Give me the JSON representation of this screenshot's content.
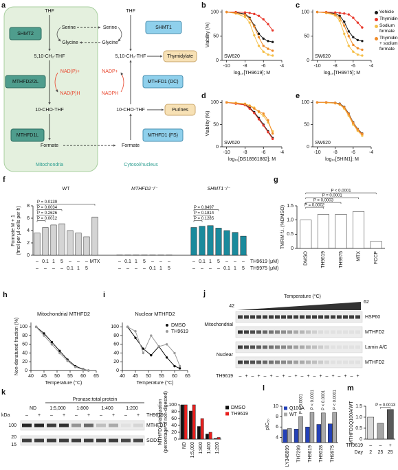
{
  "diagram": {
    "panel": "a",
    "mito": {
      "thf": "THF",
      "serine": "Serine",
      "glycine": "Glycine",
      "ch2thf": "5,10-CH₂-THF",
      "nadp_plus": "NAD(P)+",
      "nadph": "NAD(P)H",
      "chothf": "10-CHO-THF",
      "formate": "Formate",
      "shmt": "SHMT2",
      "mthfd": "MTHFD2/2L",
      "mthfd1l": "MTHFD1L",
      "label": "Mitochondria"
    },
    "cyto": {
      "thf": "THF",
      "serine": "Serine",
      "glycine": "Glycine",
      "ch2thf": "5,10-CH₂-THF",
      "nadp_plus": "NADP+",
      "nadph": "NADPH",
      "chothf": "10-CHO-THF",
      "formate": "Formate",
      "shmt": "SHMT1",
      "mthfd_dc": "MTHFD1 (DC)",
      "mthfd_fs": "MTHFD1 (FS)",
      "thymidylate": "Thymidylate",
      "purines": "Purines",
      "label": "Cytosol/nucleus"
    }
  },
  "chart_data": [
    {
      "type": "line",
      "panel": "b",
      "annotation": "SW620",
      "xlabel": "log₁₀[TH9619]; M",
      "ylabel": "Viability (%)",
      "x": [
        -10,
        -9,
        -8,
        -7.5,
        -7,
        -6.5,
        -6,
        -5.5,
        -5
      ],
      "xlim": [
        -10.5,
        -4
      ],
      "xticks": [
        -10,
        -8,
        -6,
        -4
      ],
      "ylim": [
        0,
        105
      ],
      "yticks": [
        0,
        50,
        100
      ],
      "series": [
        {
          "color": "#1a1a1a",
          "values": [
            100,
            99,
            96,
            88,
            72,
            55,
            45,
            40,
            38
          ]
        },
        {
          "color": "#e8382b",
          "values": [
            100,
            100,
            99,
            98,
            96,
            92,
            85,
            75,
            62
          ]
        },
        {
          "color": "#f5c04a",
          "values": [
            100,
            97,
            90,
            78,
            52,
            30,
            18,
            12,
            10
          ]
        },
        {
          "color": "#f08c2a",
          "values": [
            100,
            98,
            94,
            86,
            70,
            48,
            30,
            24,
            20
          ]
        }
      ]
    },
    {
      "type": "line",
      "panel": "c",
      "annotation": "SW620",
      "xlabel": "log₁₀[TH9975]; M",
      "x": [
        -10,
        -9,
        -8,
        -7.5,
        -7,
        -6.5,
        -6,
        -5.5,
        -5
      ],
      "xlim": [
        -10.5,
        -4
      ],
      "xticks": [
        -10,
        -8,
        -6,
        -4
      ],
      "ylim": [
        0,
        105
      ],
      "yticks": [
        0,
        50,
        100
      ],
      "legend": "right",
      "series": [
        {
          "name": "Vehicle",
          "color": "#1a1a1a",
          "values": [
            100,
            99,
            97,
            92,
            80,
            60,
            48,
            42,
            40
          ]
        },
        {
          "name": "Thymidine",
          "color": "#e8382b",
          "values": [
            100,
            100,
            99,
            98,
            97,
            95,
            88,
            78,
            68
          ]
        },
        {
          "name": "Sodium formate",
          "color": "#f5c04a",
          "values": [
            100,
            98,
            93,
            82,
            55,
            30,
            18,
            12,
            10
          ]
        },
        {
          "name": "Thymidine + sodium formate",
          "color": "#f08c2a",
          "values": [
            100,
            99,
            95,
            88,
            72,
            50,
            32,
            25,
            22
          ]
        }
      ]
    },
    {
      "type": "line",
      "panel": "d",
      "annotation": "SW620",
      "xlabel": "log₁₀[DS18561882]; M",
      "ylabel": "Viability (%)",
      "x": [
        -10,
        -9,
        -8,
        -7.5,
        -7,
        -6.5,
        -6,
        -5.5,
        -5
      ],
      "xlim": [
        -10.5,
        -4
      ],
      "xticks": [
        -10,
        -8,
        -6,
        -4
      ],
      "ylim": [
        0,
        105
      ],
      "yticks": [
        0,
        50,
        100
      ],
      "series": [
        {
          "color": "#1a1a1a",
          "values": [
            100,
            98,
            95,
            88,
            78,
            65,
            50,
            35,
            20
          ]
        },
        {
          "color": "#e8382b",
          "values": [
            100,
            97,
            94,
            86,
            76,
            62,
            48,
            33,
            18
          ]
        },
        {
          "color": "#f5c04a",
          "values": [
            100,
            99,
            97,
            93,
            88,
            78,
            70,
            55,
            35
          ]
        },
        {
          "color": "#f08c2a",
          "values": [
            100,
            98,
            96,
            92,
            86,
            80,
            75,
            60,
            30
          ]
        }
      ]
    },
    {
      "type": "line",
      "panel": "e",
      "annotation": "SW620",
      "xlabel": "log₁₀[SHIN1]; M",
      "x": [
        -10,
        -9,
        -8,
        -7.5,
        -7,
        -6.5,
        -6,
        -5.5,
        -5
      ],
      "xlim": [
        -10.5,
        -4
      ],
      "xticks": [
        -10,
        -8,
        -6,
        -4
      ],
      "ylim": [
        0,
        105
      ],
      "yticks": [
        0,
        50,
        100
      ],
      "series": [
        {
          "color": "#1a1a1a",
          "values": [
            100,
            100,
            99,
            97,
            90,
            75,
            55,
            40,
            30
          ]
        },
        {
          "color": "#e8382b",
          "values": [
            100,
            100,
            98,
            96,
            88,
            72,
            52,
            38,
            28
          ]
        },
        {
          "color": "#f5c04a",
          "values": [
            100,
            99,
            98,
            95,
            86,
            70,
            50,
            36,
            25
          ]
        },
        {
          "color": "#f08c2a",
          "values": [
            100,
            100,
            99,
            96,
            89,
            74,
            54,
            39,
            29
          ]
        }
      ]
    },
    {
      "type": "bar",
      "panel": "f",
      "ylabel": [
        "Formate M + 1",
        "(fmol per μl cells per h)"
      ],
      "ylim": [
        0,
        8
      ],
      "yticks": [
        0,
        2,
        4,
        6,
        8
      ],
      "row_labels": [
        "TH9619 (μM)",
        "TH9975 (μM)"
      ],
      "groups": [
        {
          "name": "WT",
          "color": "#d4d4d4",
          "values": [
            3.6,
            4.5,
            4.9,
            5.1,
            4.0,
            3.6,
            3.0,
            6.2
          ],
          "row1": [
            "–",
            "0.1",
            "1",
            "5",
            "–",
            "–",
            "–",
            "MTX"
          ],
          "row2": [
            "–",
            "–",
            "–",
            "–",
            "0.1",
            "1",
            "5",
            null
          ],
          "p_values": [
            "P = 0.0012",
            "P = 0.2626",
            "P = 0.0034",
            "P = 0.0139"
          ]
        },
        {
          "name": "MTHFD2⁻/⁻",
          "color": "#222222",
          "values": [
            0.05,
            0.05,
            0.05,
            0.05,
            0.05,
            0.05,
            0.05
          ],
          "row1": [
            "–",
            "0.1",
            "1",
            "5",
            "–",
            "–",
            "–"
          ],
          "row2": [
            "–",
            "–",
            "–",
            "–",
            "0.1",
            "1",
            "5"
          ]
        },
        {
          "name": "SHMT1⁻/⁻",
          "color": "#1a8a9c",
          "values": [
            4.5,
            4.7,
            4.8,
            4.4,
            4.0,
            3.7,
            3.1
          ],
          "row1": [
            "–",
            "0.1",
            "1",
            "5",
            "–",
            "–",
            "–"
          ],
          "row2": [
            "–",
            "–",
            "–",
            "–",
            "0.1",
            "1",
            "5"
          ],
          "p_values": [
            "P = 0.1285",
            "P = 0.1814",
            "P = 0.8497"
          ]
        }
      ]
    },
    {
      "type": "bar",
      "panel": "g",
      "ylabel": "TMRM f.i. (%DMSO)",
      "categories": [
        "DMSO",
        "TH9619",
        "TH9975",
        "MTX",
        "FCCP"
      ],
      "values": [
        1.0,
        1.2,
        1.2,
        1.3,
        0.25
      ],
      "color": "#ffffff",
      "ylim": [
        0,
        1.5
      ],
      "yticks": [
        0,
        0.5,
        {
          "value": 1,
          "label": "1.0"
        },
        1.5
      ],
      "p_values": [
        "P = 0.0002",
        "P = 0.0003",
        "P = 0.0001",
        "P < 0.0001"
      ]
    },
    {
      "type": "line",
      "panel": "h",
      "title": "Mitochondrial MTHFD2",
      "xlabel": "Temperature (°C)",
      "ylabel": "Non-denatured fraction (%)",
      "x": [
        42,
        45,
        48,
        51,
        54,
        57,
        60,
        62
      ],
      "xlim": [
        40,
        65
      ],
      "xticks": [
        40,
        45,
        50,
        55,
        60,
        65
      ],
      "ylim": [
        0,
        110
      ],
      "yticks": [
        0,
        20,
        40,
        60,
        80,
        100
      ],
      "series": [
        {
          "color": "#111111",
          "values": [
            100,
            85,
            65,
            45,
            25,
            10,
            3,
            0
          ]
        },
        {
          "color": "#9a9a9a",
          "values": [
            100,
            80,
            60,
            40,
            22,
            8,
            2,
            0
          ]
        }
      ]
    },
    {
      "type": "line",
      "panel": "i",
      "title": "Nuclear MTHFD2",
      "xlabel": "Temperature (°C)",
      "x": [
        42,
        45,
        48,
        51,
        54,
        57,
        60,
        62
      ],
      "xlim": [
        40,
        65
      ],
      "xticks": [
        40,
        45,
        50,
        55,
        60,
        65
      ],
      "ylim": [
        0,
        110
      ],
      "yticks": [
        0,
        20,
        40,
        60,
        80,
        100
      ],
      "legend": "upper right",
      "series": [
        {
          "name": "DMSO",
          "color": "#111111",
          "values": [
            100,
            75,
            50,
            35,
            55,
            30,
            10,
            5
          ]
        },
        {
          "name": "TH9619",
          "color": "#9a9a9a",
          "values": [
            100,
            90,
            40,
            80,
            55,
            60,
            40,
            10
          ]
        }
      ]
    },
    {
      "type": "bar",
      "ylabel": [
        "MTHFD1 stabilization",
        "(percentage of non-digested)"
      ],
      "categories": [
        "ND",
        "1:5,000",
        "1:800",
        "1:400",
        "1:200"
      ],
      "ylim": [
        0,
        100
      ],
      "yticks": [
        0,
        20,
        40,
        60,
        80,
        100
      ],
      "legend": "right",
      "series": [
        {
          "name": "DMSO",
          "color": "#111111",
          "values": [
            100,
            82,
            37,
            15,
            2
          ]
        },
        {
          "name": "TH9619",
          "color": "#e8201e",
          "values": [
            100,
            100,
            60,
            20,
            5
          ]
        }
      ]
    },
    {
      "type": "bar",
      "panel": "l",
      "ylabel": "pIC₅₀",
      "categories": [
        "LY345899",
        "TH7299",
        "TH9619",
        "TH9028",
        "TH9975"
      ],
      "ylim": [
        3,
        10
      ],
      "yticks": [
        4,
        6,
        8,
        10
      ],
      "legend": "upper left",
      "series": [
        {
          "name": "Q100A",
          "color": "#2441b8",
          "values": [
            5.5,
            5.6,
            6.0,
            6.5,
            6.6
          ]
        },
        {
          "name": "WT",
          "color": "#a8a8a8",
          "values": [
            5.7,
            8.0,
            8.8,
            8.7,
            8.8
          ]
        }
      ],
      "annotations": [
        "P < 0.0001",
        "P < 0.0001",
        "P < 0.0001",
        "P < 0.0001"
      ]
    },
    {
      "type": "bar",
      "panel": "m",
      "ylabel": "MTHFD1Q100A/WT",
      "values": [
        1.0,
        0.72,
        1.35
      ],
      "colors": [
        "#d9d9d9",
        "#a6a6a6",
        "#595959"
      ],
      "ylim": [
        0,
        1.5
      ],
      "yticks": [
        0,
        0.5,
        {
          "value": 1,
          "label": "1.0"
        },
        1.5
      ],
      "row_labels": [
        "TH9619",
        "Day"
      ],
      "rows": [
        [
          "–",
          "–",
          "+"
        ],
        [
          "2",
          "25",
          "25"
        ]
      ],
      "p_values": [
        "P = 0.0013"
      ]
    }
  ],
  "blots": [
    {
      "panel": "j",
      "axis_label": "Temperature (°C)",
      "temp_range": [
        42,
        62
      ],
      "sections": [
        {
          "name": "Mitochondrial",
          "proteins": [
            "HSP60",
            "MTHFD2"
          ]
        },
        {
          "name": "Nuclear",
          "proteins": [
            "Lamin A/C",
            "MTHFD2"
          ]
        }
      ],
      "treatment": "TH9619",
      "lanes": [
        "–",
        "+",
        "–",
        "+",
        "–",
        "+",
        "–",
        "+",
        "–",
        "+",
        "–",
        "+",
        "–",
        "+",
        "–",
        "+",
        "–",
        "+",
        "–",
        "+"
      ]
    },
    {
      "panel": "k",
      "header": "Pronase:total protein",
      "columns": [
        "ND",
        "1:5,000",
        "1:800",
        "1:400",
        "1:200"
      ],
      "kda_label": "kDa",
      "kda": [
        100,
        20,
        15
      ],
      "proteins": [
        "MTHFD1",
        "SOD1"
      ],
      "treatment": "TH9619",
      "lanes": [
        "–",
        "+",
        "–",
        "+",
        "–",
        "+",
        "–",
        "+",
        "–",
        "+"
      ]
    }
  ]
}
